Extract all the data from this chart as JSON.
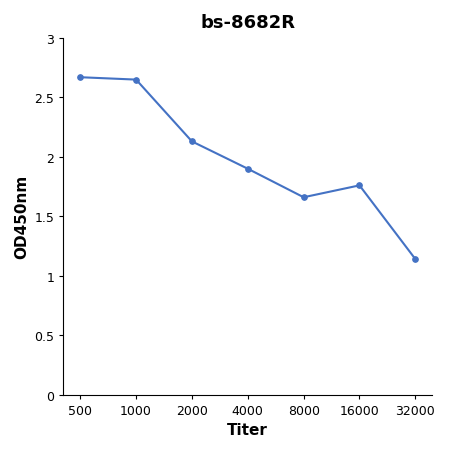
{
  "title": "bs-8682R",
  "xlabel": "Titer",
  "ylabel": "OD450nm",
  "x_values": [
    500,
    1000,
    2000,
    4000,
    8000,
    16000,
    32000
  ],
  "y_values": [
    2.67,
    2.65,
    2.13,
    1.9,
    1.66,
    1.76,
    1.14
  ],
  "line_color": "#4472C4",
  "marker_color": "#4472C4",
  "marker_style": "o",
  "marker_size": 4,
  "line_width": 1.5,
  "ylim": [
    0,
    3.0
  ],
  "yticks": [
    0,
    0.5,
    1.0,
    1.5,
    2.0,
    2.5,
    3.0
  ],
  "ytick_labels": [
    "0",
    "0.5",
    "1",
    "1.5",
    "2",
    "2.5",
    "3"
  ],
  "xtick_labels": [
    "500",
    "1000",
    "2000",
    "4000",
    "8000",
    "16000",
    "32000"
  ],
  "background_color": "#ffffff",
  "title_fontsize": 13,
  "axis_label_fontsize": 11,
  "tick_fontsize": 9
}
